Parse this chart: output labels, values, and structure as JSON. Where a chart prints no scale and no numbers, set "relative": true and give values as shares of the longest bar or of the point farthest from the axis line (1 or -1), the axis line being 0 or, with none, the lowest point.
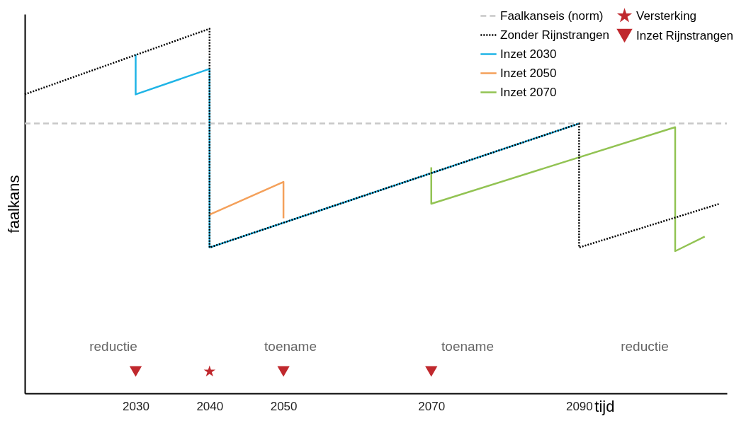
{
  "chart_data": {
    "type": "line",
    "relative": true,
    "xlabel": "tijd",
    "ylabel": "faalkans",
    "xlim": [
      2015,
      2110
    ],
    "xticks": [
      2030,
      2040,
      2050,
      2070,
      2090
    ],
    "grid": false,
    "legend": "top right",
    "series": [
      {
        "name": "Faalkanseis (norm)",
        "line_style": "dashed",
        "color": "#c8c8c8",
        "x": [
          2015,
          2110
        ],
        "values": [
          0.74,
          0.74
        ]
      },
      {
        "name": "Zonder Rijnstrangen",
        "line_style": "dotted",
        "color": "#000000",
        "x": [
          2015,
          2040,
          2040,
          2090,
          2090,
          2109
        ],
        "values": [
          0.82,
          1.0,
          0.4,
          0.74,
          0.4,
          0.52
        ]
      },
      {
        "name": "Inzet 2030",
        "line_style": "solid",
        "color": "#1fb4e6",
        "x": [
          2030,
          2030,
          2040,
          2040,
          2090
        ],
        "values": [
          0.93,
          0.82,
          0.89,
          0.4,
          0.74
        ]
      },
      {
        "name": "Inzet 2050",
        "line_style": "solid",
        "color": "#f4a05a",
        "x": [
          2040,
          2050,
          2050
        ],
        "values": [
          0.49,
          0.58,
          0.48
        ]
      },
      {
        "name": "Inzet 2070",
        "line_style": "solid",
        "color": "#92c353",
        "x": [
          2070,
          2070,
          2103,
          2103,
          2107
        ],
        "values": [
          0.62,
          0.52,
          0.73,
          0.39,
          0.43
        ]
      },
      {
        "name": "Versterking",
        "type": "scatter",
        "marker": "star",
        "color": "#c0282d",
        "x": [
          2040
        ],
        "values": [
          0.06
        ]
      },
      {
        "name": "Inzet Rijnstrangen",
        "type": "scatter",
        "marker": "triangle",
        "color": "#c0282d",
        "x": [
          2030,
          2050,
          2070
        ],
        "values": [
          0.06,
          0.06,
          0.06
        ]
      }
    ],
    "annotations": [
      "reductie",
      "toename",
      "toename",
      "reductie"
    ]
  }
}
